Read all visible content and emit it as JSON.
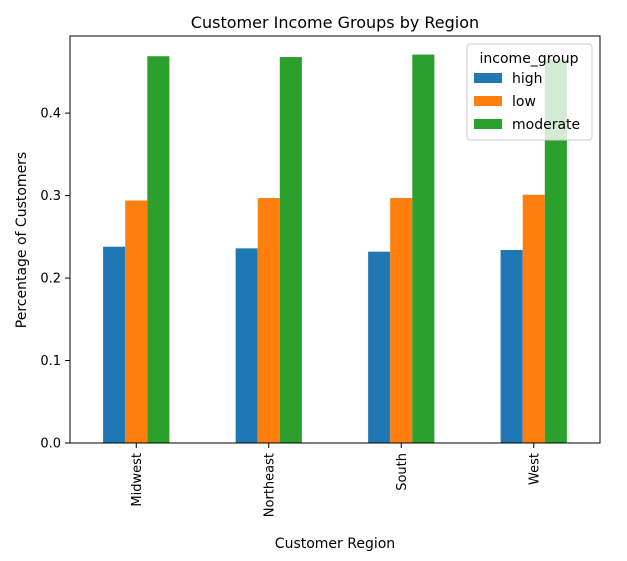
{
  "chart_data": {
    "type": "bar",
    "title": "Customer Income Groups by Region",
    "xlabel": "Customer Region",
    "ylabel": "Percentage of Customers",
    "categories": [
      "Midwest",
      "Northeast",
      "South",
      "West"
    ],
    "series": [
      {
        "name": "high",
        "values": [
          0.238,
          0.236,
          0.232,
          0.234
        ],
        "color": "#1f77b4"
      },
      {
        "name": "low",
        "values": [
          0.294,
          0.297,
          0.297,
          0.301
        ],
        "color": "#ff7f0e"
      },
      {
        "name": "moderate",
        "values": [
          0.469,
          0.468,
          0.471,
          0.465
        ],
        "color": "#2ca02c"
      }
    ],
    "ylim": [
      0,
      0.4935
    ],
    "yticks": [
      0.0,
      0.1,
      0.2,
      0.3,
      0.4
    ],
    "ytick_labels": [
      "0.0",
      "0.1",
      "0.2",
      "0.3",
      "0.4"
    ],
    "legend": {
      "title": "income_group",
      "placement": "top-right"
    },
    "grid": false
  }
}
